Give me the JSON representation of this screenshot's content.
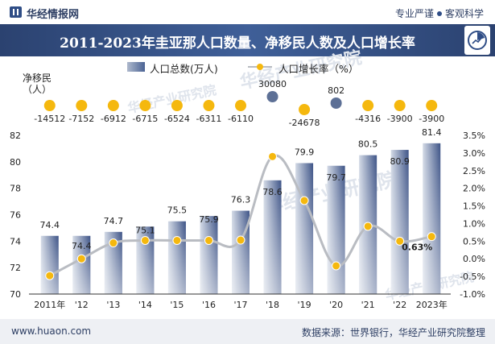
{
  "header": {
    "brand": "华经情报网",
    "tagline_left": "专业严谨",
    "tagline_right": "客观科学"
  },
  "chart_data": {
    "type": "bar",
    "title": "2011-2023年圭亚那人口数量、净移民人数及人口增长率",
    "categories": [
      "2011年",
      "'12",
      "'13",
      "'14",
      "'15",
      "'16",
      "'17",
      "'18",
      "'19",
      "'20",
      "'21",
      "'22",
      "2023年"
    ],
    "series": [
      {
        "name": "人口总数(万人)",
        "type": "bar",
        "axis": "left",
        "values": [
          74.4,
          74.4,
          74.7,
          75.1,
          75.5,
          75.9,
          76.3,
          78.6,
          79.9,
          79.7,
          80.5,
          80.9,
          81.4
        ],
        "labels": [
          "74.4",
          "74.4",
          "74.7",
          "75.1",
          "75.5",
          "75.9",
          "76.3",
          "78.6",
          "79.9",
          "79.7",
          "80.5",
          "80.9",
          "81.4"
        ]
      },
      {
        "name": "人口增长率（%）",
        "type": "line",
        "axis": "right",
        "values": [
          -0.48,
          0.0,
          0.45,
          0.52,
          0.52,
          0.52,
          0.53,
          2.9,
          1.65,
          -0.2,
          0.92,
          0.5,
          0.63
        ],
        "labels": [
          "",
          "",
          "",
          "",
          "",
          "",
          "",
          "",
          "",
          "",
          "",
          "",
          "0.63%"
        ]
      }
    ],
    "migration": {
      "label": "净移民\n（人）",
      "values": [
        -14512,
        -7152,
        -6912,
        -6715,
        -6524,
        -6311,
        -6110,
        30080,
        -24678,
        802,
        -4316,
        -3900,
        -3900
      ],
      "labels": [
        "-14512",
        "-7152",
        "-6912",
        "-6715",
        "-6524",
        "-6311",
        "-6110",
        "30080",
        "-24678",
        "802",
        "-4316",
        "-3900",
        "-3900"
      ]
    },
    "y_left": {
      "range": [
        70,
        82
      ],
      "ticks": [
        "70",
        "72",
        "74",
        "76",
        "78",
        "80",
        "82"
      ]
    },
    "y_right": {
      "range": [
        -1.0,
        3.5
      ],
      "ticks": [
        "-1.0%",
        "-0.5%",
        "0.0%",
        "0.5%",
        "1.0%",
        "1.5%",
        "2.0%",
        "2.5%",
        "3.0%",
        "3.5%"
      ]
    },
    "grid": false,
    "legend_position": "top-center"
  },
  "colors": {
    "bar_light": "#d3dae6",
    "bar_dark": "#3e5487",
    "line": "#b9bcc2",
    "dot_gold": "#f5b80e",
    "dot_navy": "#5d7096",
    "title_band": "#2f4a7c"
  },
  "watermark": "华经产业研究院",
  "footer": {
    "site": "www.huaon.com",
    "source": "数据来源：世界银行，华经产业研究院整理"
  }
}
